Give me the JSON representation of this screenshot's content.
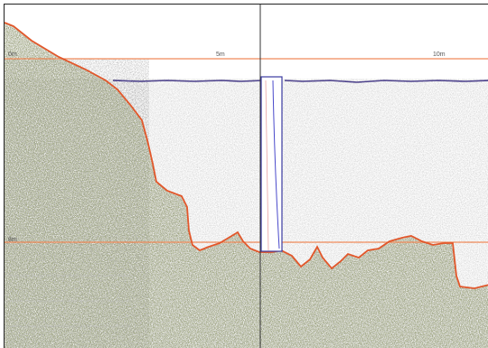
{
  "echogram": {
    "title": "",
    "range_labels": {
      "surface": "0m",
      "mid": "5m",
      "right": "10m",
      "deep": "8m"
    }
  },
  "colors": {
    "bottom_line": "#e2572b",
    "surface_line": "#4a3f8a",
    "reference_line": "#f08a5a",
    "cursor_line": "#333333",
    "sounding_bar_edge": "#3a3aa0",
    "noise": "#9a9a9a",
    "vegetation": "#4d5a2a"
  },
  "icons": {
    "cursor": "vertical-cursor-line",
    "sounding": "sounding-column-marker"
  }
}
